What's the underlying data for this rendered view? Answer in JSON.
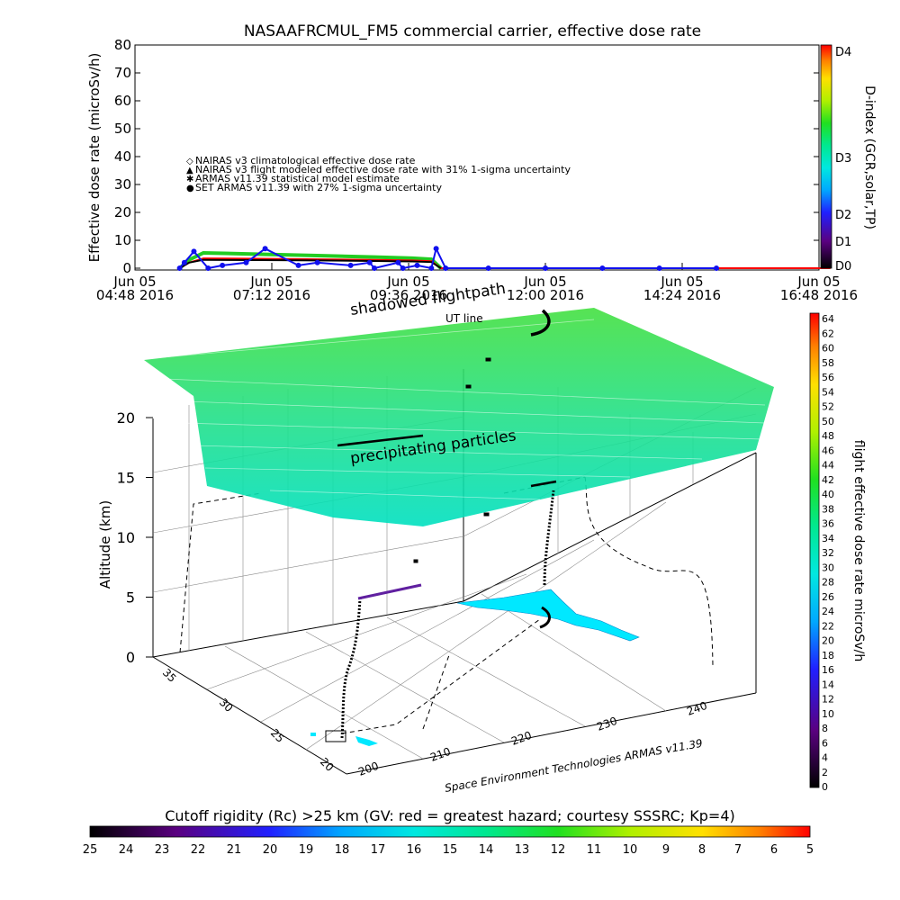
{
  "chart_data": [
    {
      "type": "line",
      "title": "NASAAFRCMUL_FM5 commercial carrier, effective dose rate",
      "ylabel": "Effective dose rate (microSv/h)",
      "ylim": [
        0,
        80
      ],
      "yticks": [
        "0",
        "10",
        "20",
        "30",
        "40",
        "50",
        "60",
        "70",
        "80"
      ],
      "xticks": [
        {
          "day": "Jun 05",
          "time": "04:48 2016"
        },
        {
          "day": "Jun 05",
          "time": "07:12 2016"
        },
        {
          "day": "Jun 05",
          "time": "09:36 2016"
        },
        {
          "day": "Jun 05",
          "time": "12:00 2016"
        },
        {
          "day": "Jun 05",
          "time": "14:24 2016"
        },
        {
          "day": "Jun 05",
          "time": "16:48 2016"
        }
      ],
      "legend": [
        {
          "marker": "◇",
          "color": "#ff0000",
          "label": "NAIRAS v3 climatological effective dose rate"
        },
        {
          "marker": "▲",
          "color": "#000000",
          "label": "NAIRAS v3 flight modeled effective dose rate with 31% 1-sigma uncertainty"
        },
        {
          "marker": "✱",
          "color": "#22cc22",
          "label": "ARMAS v11.39 statistical model estimate"
        },
        {
          "marker": "●",
          "color": "#1010ee",
          "label": "SET ARMAS v11.39 with 27% 1-sigma uncertainty"
        }
      ],
      "legend_position": "left",
      "series": [
        {
          "name": "NAIRAS v3 climatological effective dose rate",
          "color": "#ff0000",
          "x": [
            "05:35",
            "05:45",
            "06:00",
            "07:00",
            "08:00",
            "09:00",
            "09:40",
            "10:00",
            "10:10",
            "17:00"
          ],
          "values": [
            0,
            2,
            3.5,
            3.4,
            3.2,
            3.0,
            2.8,
            2.5,
            0,
            0
          ]
        },
        {
          "name": "NAIRAS v3 flight modeled effective dose rate with 31% 1-sigma uncertainty",
          "color": "#000000",
          "x": [
            "05:35",
            "05:45",
            "06:00",
            "07:00",
            "08:00",
            "09:00",
            "09:40",
            "10:00",
            "10:10"
          ],
          "values": [
            0,
            2,
            3.0,
            2.9,
            2.8,
            2.6,
            2.4,
            2.2,
            0
          ]
        },
        {
          "name": "ARMAS v11.39 statistical model estimate",
          "color": "#22cc22",
          "x": [
            "05:35",
            "05:45",
            "06:00",
            "07:00",
            "08:00",
            "09:00",
            "09:40",
            "10:00",
            "10:10"
          ],
          "values": [
            0,
            3,
            5.5,
            5.0,
            4.5,
            4.0,
            3.6,
            3.2,
            0
          ]
        },
        {
          "name": "SET ARMAS v11.39 with 27% 1-sigma uncertainty",
          "color": "#1010ee",
          "x": [
            "05:35",
            "05:40",
            "05:50",
            "06:05",
            "06:20",
            "06:45",
            "07:05",
            "07:40",
            "08:00",
            "08:35",
            "08:55",
            "09:00",
            "09:25",
            "09:30",
            "09:45",
            "10:00",
            "10:05",
            "10:15",
            "11:00",
            "12:00",
            "13:00",
            "14:00",
            "15:00"
          ],
          "values": [
            0,
            2,
            6,
            0,
            1,
            2,
            7,
            1,
            2,
            1,
            2,
            0,
            2,
            0,
            1,
            0,
            7,
            0,
            0,
            0,
            0,
            0,
            0
          ]
        }
      ],
      "right_axis": {
        "label": "D-index (GCR,solar,TP)",
        "ticks": [
          "D0",
          "D1",
          "D2",
          "D3",
          "D4"
        ]
      }
    },
    {
      "type": "scatter",
      "zlabel": "Altitude (km)",
      "zticks": [
        "0",
        "5",
        "10",
        "15",
        "20"
      ],
      "latticks": [
        "20",
        "25",
        "30",
        "35"
      ],
      "lonticks": [
        "200",
        "210",
        "220",
        "230",
        "240"
      ],
      "annotations": [
        "shadowed flightpath",
        "UT line",
        "precipitating particles"
      ],
      "credit": "Space Environment Technologies ARMAS v11.39",
      "colorbar": {
        "label": "flight effective dose rate microSv/h",
        "ticks": [
          "0",
          "2",
          "4",
          "6",
          "8",
          "10",
          "12",
          "14",
          "16",
          "18",
          "20",
          "22",
          "24",
          "26",
          "28",
          "30",
          "32",
          "34",
          "36",
          "38",
          "40",
          "42",
          "44",
          "46",
          "48",
          "50",
          "52",
          "54",
          "56",
          "58",
          "60",
          "62",
          "64"
        ]
      }
    },
    {
      "type": "heatmap",
      "title": "Cutoff rigidity (Rc) >25 km (GV: red = greatest hazard; courtesy SSSRC; Kp=4)",
      "ticks": [
        "25",
        "24",
        "23",
        "22",
        "21",
        "20",
        "19",
        "18",
        "17",
        "16",
        "15",
        "14",
        "13",
        "12",
        "11",
        "10",
        "9",
        "8",
        "7",
        "6",
        "5"
      ]
    }
  ],
  "colors": {
    "rainbow": [
      "#000000",
      "#5a0080",
      "#2020ff",
      "#00a8ff",
      "#00e8e0",
      "#00e890",
      "#20e020",
      "#b0f000",
      "#ffe000",
      "#ff8000",
      "#ff0000"
    ]
  }
}
